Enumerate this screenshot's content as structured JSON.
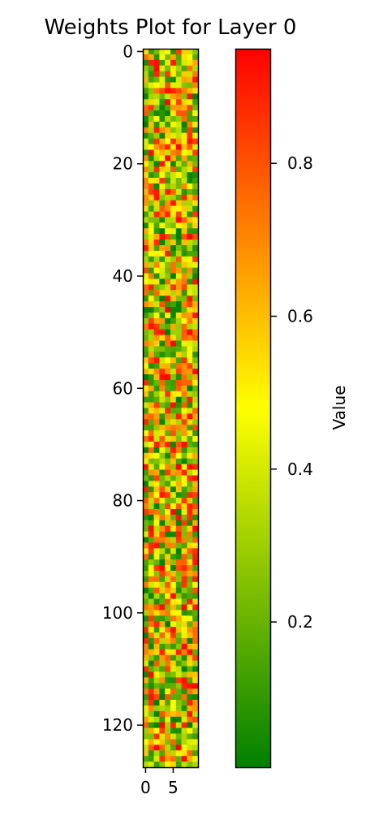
{
  "chart_data": {
    "type": "heatmap",
    "title": "Weights Plot for Layer 0",
    "rows": 128,
    "cols": 10,
    "x_ticks": [
      0,
      5
    ],
    "y_ticks": [
      0,
      20,
      40,
      60,
      80,
      100,
      120
    ],
    "value_range": [
      0.01,
      0.95
    ],
    "colormap": [
      "#008000",
      "#ffff00",
      "#ff0000"
    ],
    "colorbar": {
      "label": "Value",
      "ticks": [
        0.2,
        0.4,
        0.6,
        0.8
      ],
      "tick_labels": [
        "0.2",
        "0.4",
        "0.6",
        "0.8"
      ]
    },
    "values_note": "",
    "seed": 7
  }
}
